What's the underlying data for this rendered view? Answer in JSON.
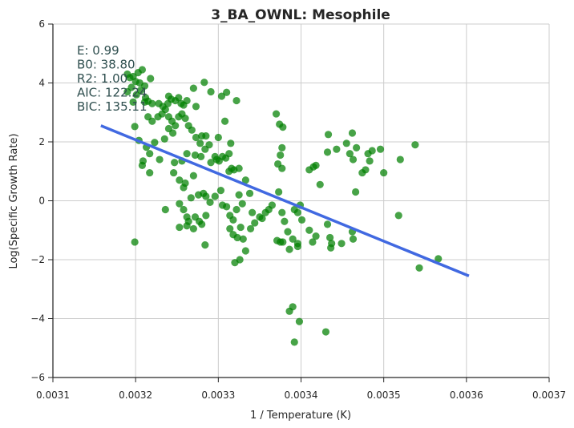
{
  "chart_data": {
    "type": "scatter",
    "title": "3_BA_OWNL: Mesophile",
    "xlabel": "1 / Temperature (K)",
    "ylabel": "Log(Specific Growth Rate)",
    "xlim": [
      0.0031,
      0.0037
    ],
    "ylim": [
      -6,
      6
    ],
    "xticks": [
      "0.0031",
      "0.0032",
      "0.0033",
      "0.0034",
      "0.0035",
      "0.0036",
      "0.0037"
    ],
    "yticks": [
      "−6",
      "−4",
      "−2",
      "0",
      "2",
      "4",
      "6"
    ],
    "grid": true,
    "point_color": "#008000",
    "line_color": "#4169e1",
    "stats": [
      {
        "key": "E",
        "label": "E:  0.99"
      },
      {
        "key": "B0",
        "label": "B0:  38.80"
      },
      {
        "key": "R2",
        "label": "R2:  1.00"
      },
      {
        "key": "AIC",
        "label": "AIC: 122.24"
      },
      {
        "key": "BIC",
        "label": "BIC: 135.11"
      }
    ],
    "fit_line": {
      "x": [
        0.003158,
        0.003603
      ],
      "y": [
        2.55,
        -2.55
      ]
    },
    "points": [
      {
        "x": 0.00319,
        "y": 4.3
      },
      {
        "x": 0.003193,
        "y": 4.18
      },
      {
        "x": 0.003197,
        "y": 4.22
      },
      {
        "x": 0.0032,
        "y": 4.05
      },
      {
        "x": 0.003203,
        "y": 4.35
      },
      {
        "x": 0.003208,
        "y": 4.45
      },
      {
        "x": 0.003205,
        "y": 4.0
      },
      {
        "x": 0.003211,
        "y": 3.9
      },
      {
        "x": 0.003195,
        "y": 3.85
      },
      {
        "x": 0.00319,
        "y": 3.7
      },
      {
        "x": 0.003201,
        "y": 3.6
      },
      {
        "x": 0.003206,
        "y": 3.75
      },
      {
        "x": 0.003212,
        "y": 3.5
      },
      {
        "x": 0.003218,
        "y": 4.15
      },
      {
        "x": 0.003197,
        "y": 3.35
      },
      {
        "x": 0.003211,
        "y": 3.35
      },
      {
        "x": 0.003215,
        "y": 3.38
      },
      {
        "x": 0.00322,
        "y": 3.3
      },
      {
        "x": 0.003228,
        "y": 3.3
      },
      {
        "x": 0.003233,
        "y": 3.2
      },
      {
        "x": 0.003236,
        "y": 3.1
      },
      {
        "x": 0.003239,
        "y": 3.3
      },
      {
        "x": 0.003243,
        "y": 3.45
      },
      {
        "x": 0.00324,
        "y": 3.55
      },
      {
        "x": 0.003248,
        "y": 3.4
      },
      {
        "x": 0.003252,
        "y": 3.5
      },
      {
        "x": 0.003255,
        "y": 3.3
      },
      {
        "x": 0.003258,
        "y": 3.25
      },
      {
        "x": 0.003262,
        "y": 3.4
      },
      {
        "x": 0.00327,
        "y": 3.82
      },
      {
        "x": 0.003273,
        "y": 3.2
      },
      {
        "x": 0.003283,
        "y": 4.02
      },
      {
        "x": 0.003291,
        "y": 3.7
      },
      {
        "x": 0.003304,
        "y": 3.55
      },
      {
        "x": 0.00331,
        "y": 3.68
      },
      {
        "x": 0.003322,
        "y": 3.4
      },
      {
        "x": 0.003232,
        "y": 2.95
      },
      {
        "x": 0.00324,
        "y": 2.85
      },
      {
        "x": 0.003244,
        "y": 2.7
      },
      {
        "x": 0.003248,
        "y": 2.55
      },
      {
        "x": 0.003252,
        "y": 2.85
      },
      {
        "x": 0.003256,
        "y": 2.95
      },
      {
        "x": 0.00326,
        "y": 2.8
      },
      {
        "x": 0.003264,
        "y": 2.55
      },
      {
        "x": 0.003268,
        "y": 2.4
      },
      {
        "x": 0.00324,
        "y": 2.45
      },
      {
        "x": 0.003245,
        "y": 2.3
      },
      {
        "x": 0.003227,
        "y": 2.85
      },
      {
        "x": 0.003215,
        "y": 2.85
      },
      {
        "x": 0.003199,
        "y": 2.52
      },
      {
        "x": 0.00322,
        "y": 2.7
      },
      {
        "x": 0.003213,
        "y": 1.82
      },
      {
        "x": 0.003223,
        "y": 1.98
      },
      {
        "x": 0.003235,
        "y": 2.1
      },
      {
        "x": 0.003273,
        "y": 2.15
      },
      {
        "x": 0.00328,
        "y": 2.2
      },
      {
        "x": 0.003285,
        "y": 2.2
      },
      {
        "x": 0.003278,
        "y": 1.95
      },
      {
        "x": 0.003284,
        "y": 1.75
      },
      {
        "x": 0.003289,
        "y": 1.9
      },
      {
        "x": 0.0033,
        "y": 2.15
      },
      {
        "x": 0.003308,
        "y": 2.7
      },
      {
        "x": 0.003315,
        "y": 1.95
      },
      {
        "x": 0.003204,
        "y": 2.05
      },
      {
        "x": 0.003209,
        "y": 1.35
      },
      {
        "x": 0.003208,
        "y": 1.2
      },
      {
        "x": 0.003217,
        "y": 1.6
      },
      {
        "x": 0.003229,
        "y": 1.4
      },
      {
        "x": 0.003247,
        "y": 1.3
      },
      {
        "x": 0.003256,
        "y": 1.35
      },
      {
        "x": 0.003262,
        "y": 1.6
      },
      {
        "x": 0.003272,
        "y": 1.55
      },
      {
        "x": 0.003279,
        "y": 1.5
      },
      {
        "x": 0.003291,
        "y": 1.3
      },
      {
        "x": 0.003296,
        "y": 1.5
      },
      {
        "x": 0.003298,
        "y": 1.4
      },
      {
        "x": 0.003301,
        "y": 1.35
      },
      {
        "x": 0.003305,
        "y": 1.5
      },
      {
        "x": 0.003309,
        "y": 1.45
      },
      {
        "x": 0.003313,
        "y": 1.6
      },
      {
        "x": 0.003316,
        "y": 1.1
      },
      {
        "x": 0.003313,
        "y": 1.0
      },
      {
        "x": 0.003319,
        "y": 1.05
      },
      {
        "x": 0.003325,
        "y": 1.1
      },
      {
        "x": 0.003217,
        "y": 0.95
      },
      {
        "x": 0.003246,
        "y": 0.95
      },
      {
        "x": 0.003253,
        "y": 0.7
      },
      {
        "x": 0.003258,
        "y": 0.45
      },
      {
        "x": 0.00326,
        "y": 0.6
      },
      {
        "x": 0.00327,
        "y": 0.85
      },
      {
        "x": 0.003267,
        "y": 0.1
      },
      {
        "x": 0.003276,
        "y": 0.2
      },
      {
        "x": 0.003282,
        "y": 0.25
      },
      {
        "x": 0.003285,
        "y": 0.15
      },
      {
        "x": 0.00329,
        "y": -0.05
      },
      {
        "x": 0.003296,
        "y": 0.15
      },
      {
        "x": 0.003303,
        "y": 0.35
      },
      {
        "x": 0.003305,
        "y": -0.15
      },
      {
        "x": 0.00331,
        "y": -0.2
      },
      {
        "x": 0.003314,
        "y": -0.5
      },
      {
        "x": 0.003318,
        "y": -0.65
      },
      {
        "x": 0.003322,
        "y": -0.3
      },
      {
        "x": 0.003325,
        "y": 0.2
      },
      {
        "x": 0.003329,
        "y": -0.1
      },
      {
        "x": 0.003333,
        "y": 0.7
      },
      {
        "x": 0.003338,
        "y": 0.25
      },
      {
        "x": 0.003253,
        "y": -0.1
      },
      {
        "x": 0.003258,
        "y": -0.3
      },
      {
        "x": 0.003262,
        "y": -0.55
      },
      {
        "x": 0.003264,
        "y": -0.7
      },
      {
        "x": 0.003272,
        "y": -0.55
      },
      {
        "x": 0.003277,
        "y": -0.7
      },
      {
        "x": 0.00328,
        "y": -0.8
      },
      {
        "x": 0.003285,
        "y": -0.5
      },
      {
        "x": 0.003262,
        "y": -0.85
      },
      {
        "x": 0.00327,
        "y": -0.95
      },
      {
        "x": 0.003253,
        "y": -0.9
      },
      {
        "x": 0.003236,
        "y": -0.3
      },
      {
        "x": 0.003199,
        "y": -1.4
      },
      {
        "x": 0.003284,
        "y": -1.5
      },
      {
        "x": 0.003314,
        "y": -0.95
      },
      {
        "x": 0.003318,
        "y": -1.15
      },
      {
        "x": 0.003323,
        "y": -1.25
      },
      {
        "x": 0.00332,
        "y": -2.1
      },
      {
        "x": 0.003326,
        "y": -2.0
      },
      {
        "x": 0.00333,
        "y": -1.3
      },
      {
        "x": 0.003333,
        "y": -1.7
      },
      {
        "x": 0.003327,
        "y": -0.9
      },
      {
        "x": 0.003339,
        "y": -0.95
      },
      {
        "x": 0.003344,
        "y": -0.75
      },
      {
        "x": 0.00335,
        "y": -0.55
      },
      {
        "x": 0.003353,
        "y": -0.6
      },
      {
        "x": 0.003357,
        "y": -0.4
      },
      {
        "x": 0.003361,
        "y": -0.3
      },
      {
        "x": 0.003365,
        "y": -0.15
      },
      {
        "x": 0.003341,
        "y": -0.4
      },
      {
        "x": 0.003371,
        "y": -1.35
      },
      {
        "x": 0.003375,
        "y": -1.4
      },
      {
        "x": 0.003378,
        "y": -1.4
      },
      {
        "x": 0.003384,
        "y": -1.05
      },
      {
        "x": 0.003386,
        "y": -1.65
      },
      {
        "x": 0.00339,
        "y": -1.3
      },
      {
        "x": 0.003396,
        "y": -1.55
      },
      {
        "x": 0.003373,
        "y": 0.3
      },
      {
        "x": 0.003377,
        "y": -0.4
      },
      {
        "x": 0.00338,
        "y": -0.7
      },
      {
        "x": 0.003392,
        "y": -0.3
      },
      {
        "x": 0.003396,
        "y": -0.4
      },
      {
        "x": 0.003399,
        "y": -0.15
      },
      {
        "x": 0.003401,
        "y": -0.65
      },
      {
        "x": 0.00341,
        "y": -1.0
      },
      {
        "x": 0.003414,
        "y": -1.4
      },
      {
        "x": 0.003418,
        "y": -1.2
      },
      {
        "x": 0.003432,
        "y": -0.8
      },
      {
        "x": 0.003436,
        "y": -1.6
      },
      {
        "x": 0.003435,
        "y": -1.25
      },
      {
        "x": 0.003437,
        "y": -1.45
      },
      {
        "x": 0.003449,
        "y": -1.45
      },
      {
        "x": 0.003462,
        "y": -1.05
      },
      {
        "x": 0.003463,
        "y": -1.3
      },
      {
        "x": 0.003386,
        "y": -3.75
      },
      {
        "x": 0.00339,
        "y": -3.6
      },
      {
        "x": 0.003398,
        "y": -4.1
      },
      {
        "x": 0.003392,
        "y": -4.8
      },
      {
        "x": 0.00343,
        "y": -4.45
      },
      {
        "x": 0.003372,
        "y": 1.25
      },
      {
        "x": 0.003377,
        "y": 1.1
      },
      {
        "x": 0.003377,
        "y": 1.8
      },
      {
        "x": 0.003375,
        "y": 1.55
      },
      {
        "x": 0.00337,
        "y": 2.95
      },
      {
        "x": 0.003374,
        "y": 2.6
      },
      {
        "x": 0.003378,
        "y": 2.5
      },
      {
        "x": 0.00341,
        "y": 1.05
      },
      {
        "x": 0.003415,
        "y": 1.15
      },
      {
        "x": 0.003423,
        "y": 0.55
      },
      {
        "x": 0.003432,
        "y": 1.65
      },
      {
        "x": 0.003433,
        "y": 2.25
      },
      {
        "x": 0.003443,
        "y": 1.75
      },
      {
        "x": 0.003455,
        "y": 1.95
      },
      {
        "x": 0.003459,
        "y": 1.6
      },
      {
        "x": 0.003462,
        "y": 2.3
      },
      {
        "x": 0.003463,
        "y": 1.4
      },
      {
        "x": 0.003466,
        "y": 0.3
      },
      {
        "x": 0.003467,
        "y": 1.8
      },
      {
        "x": 0.003474,
        "y": 0.95
      },
      {
        "x": 0.003478,
        "y": 1.05
      },
      {
        "x": 0.003481,
        "y": 1.6
      },
      {
        "x": 0.003486,
        "y": 1.7
      },
      {
        "x": 0.003483,
        "y": 1.35
      },
      {
        "x": 0.003496,
        "y": 1.75
      },
      {
        "x": 0.0035,
        "y": 0.95
      },
      {
        "x": 0.003518,
        "y": -0.5
      },
      {
        "x": 0.00352,
        "y": 1.4
      },
      {
        "x": 0.003538,
        "y": 1.9
      },
      {
        "x": 0.003543,
        "y": -2.28
      },
      {
        "x": 0.003566,
        "y": -1.97
      },
      {
        "x": 0.003396,
        "y": -1.45
      },
      {
        "x": 0.003418,
        "y": 1.2
      }
    ]
  }
}
